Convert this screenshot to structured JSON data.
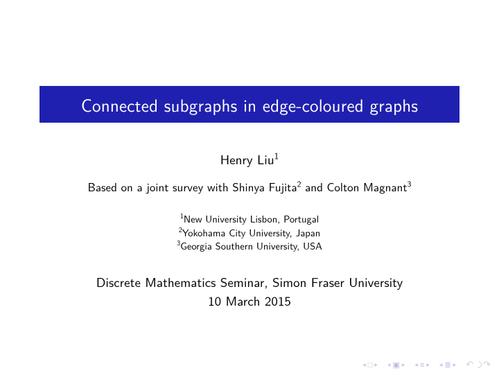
{
  "title": "Connected subgraphs in edge-coloured graphs",
  "author_name": "Henry Liu",
  "author_sup": "1",
  "survey_prefix": "Based on a joint survey with ",
  "coauthor1": "Shinya Fujita",
  "coauthor1_sup": "2",
  "survey_and": " and ",
  "coauthor2": "Colton Magnant",
  "coauthor2_sup": "3",
  "affil1_sup": "1",
  "affil1": "New University Lisbon, Portugal",
  "affil2_sup": "2",
  "affil2": "Yokohama City University, Japan",
  "affil3_sup": "3",
  "affil3": "Georgia Southern University, USA",
  "venue_line1": "Discrete Mathematics Seminar, Simon Fraser University",
  "venue_line2": "10 March 2015",
  "colors": {
    "title_bg": "#2020b0",
    "title_fg": "#ffffff",
    "page_bg": "#ffffff",
    "text": "#000000",
    "nav_icon": "#bcbce0",
    "nav_arrow": "#c8c8d8"
  },
  "nav": {
    "first_slide": "◂ □ ▸",
    "prev_frame": "◂ 🖾 ▸",
    "prev_section": "◂ ≡ ▸",
    "prev_subsection": "◂ ≣ ▸"
  }
}
